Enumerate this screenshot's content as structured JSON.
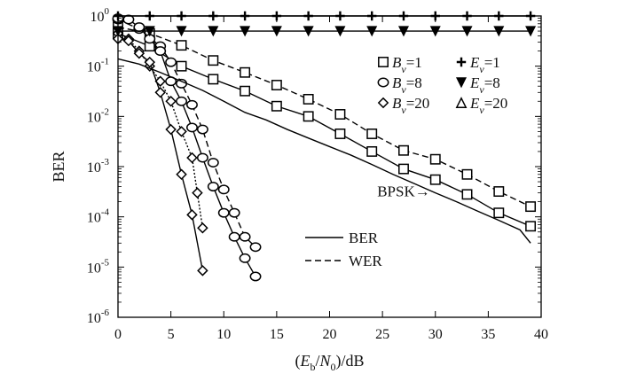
{
  "chart_data": {
    "type": "line",
    "xlabel": "(E_b/N_0)/dB",
    "ylabel": "BER",
    "xlim": [
      0,
      40
    ],
    "ylim": [
      1e-06,
      1
    ],
    "yscale": "log",
    "grid": false,
    "x_ticks": [
      "0",
      "5",
      "10",
      "15",
      "20",
      "25",
      "30",
      "35",
      "40"
    ],
    "y_ticks": [
      {
        "base": "10",
        "exp": "0"
      },
      {
        "base": "10",
        "exp": "-1"
      },
      {
        "base": "10",
        "exp": "-2"
      },
      {
        "base": "10",
        "exp": "-3"
      },
      {
        "base": "10",
        "exp": "-4"
      },
      {
        "base": "10",
        "exp": "-5"
      },
      {
        "base": "10",
        "exp": "-6"
      }
    ],
    "legend": {
      "placement": "top-right",
      "entries": [
        {
          "symbol": "square",
          "var": "B",
          "sub": "v",
          "val": "=1"
        },
        {
          "symbol": "plus",
          "var": "E",
          "sub": "v",
          "val": "=1"
        },
        {
          "symbol": "circle",
          "var": "B",
          "sub": "v",
          "val": "=8"
        },
        {
          "symbol": "triangle-down",
          "var": "E",
          "sub": "v",
          "val": "=8"
        },
        {
          "symbol": "diamond",
          "var": "B",
          "sub": "v",
          "val": "=20"
        },
        {
          "symbol": "triangle-up",
          "var": "E",
          "sub": "v",
          "val": "=20"
        }
      ]
    },
    "line_legend": [
      {
        "label": "BER",
        "style": "solid"
      },
      {
        "label": "WER",
        "style": "dashed"
      }
    ],
    "annotation": {
      "text": "BPSK→",
      "x": 30,
      "y": 0.0008
    },
    "series": [
      {
        "marker": "square",
        "line": "dashed",
        "x": [
          0,
          3,
          6,
          9,
          12,
          15,
          18,
          21,
          24,
          27,
          30,
          33,
          36,
          39
        ],
        "y": [
          0.6,
          0.45,
          0.26,
          0.13,
          0.075,
          0.042,
          0.022,
          0.011,
          0.0045,
          0.0021,
          0.0014,
          0.0007,
          0.00032,
          0.00016
        ]
      },
      {
        "marker": "square",
        "line": "solid",
        "x": [
          0,
          3,
          6,
          9,
          12,
          15,
          18,
          21,
          24,
          27,
          30,
          33,
          36,
          39
        ],
        "y": [
          0.45,
          0.25,
          0.1,
          0.055,
          0.032,
          0.016,
          0.01,
          0.0045,
          0.002,
          0.0009,
          0.00055,
          0.00028,
          0.00012,
          6.5e-05
        ]
      },
      {
        "marker": "circle",
        "line": "dashed",
        "x": [
          0,
          2,
          4,
          5,
          6,
          7,
          8,
          9,
          10,
          11,
          12,
          13
        ],
        "y": [
          0.85,
          0.55,
          0.25,
          0.12,
          0.045,
          0.017,
          0.0055,
          0.0012,
          0.00035,
          0.00012,
          4e-05,
          2.5e-05
        ]
      },
      {
        "marker": "circle",
        "line": "solid",
        "x": [
          0,
          1,
          2,
          3,
          4,
          5,
          6,
          7,
          8,
          9,
          10,
          11,
          12,
          13
        ],
        "y": [
          0.9,
          0.85,
          0.6,
          0.35,
          0.2,
          0.05,
          0.02,
          0.006,
          0.0015,
          0.0004,
          0.00012,
          4e-05,
          1.5e-05,
          6.5e-06
        ]
      },
      {
        "marker": "diamond",
        "line": "dotted",
        "x": [
          0,
          1,
          2,
          3,
          4,
          5,
          6,
          7,
          7.5,
          8
        ],
        "y": [
          0.45,
          0.35,
          0.2,
          0.1,
          0.05,
          0.02,
          0.005,
          0.0015,
          0.0003,
          6e-05
        ]
      },
      {
        "marker": "diamond",
        "line": "solid",
        "x": [
          0,
          1,
          2,
          3,
          4,
          5,
          6,
          7,
          8
        ],
        "y": [
          0.35,
          0.32,
          0.18,
          0.12,
          0.03,
          0.0055,
          0.0007,
          0.00011,
          8.5e-06
        ]
      },
      {
        "marker": "",
        "line": "solid",
        "x": [
          0,
          2,
          4,
          6,
          8,
          10,
          12,
          14,
          16,
          18,
          20,
          22,
          24,
          26,
          28,
          30,
          32,
          34,
          36,
          38,
          39
        ],
        "y": [
          0.14,
          0.11,
          0.075,
          0.05,
          0.033,
          0.02,
          0.012,
          0.0085,
          0.0055,
          0.0037,
          0.0025,
          0.0017,
          0.0011,
          0.0007,
          0.00046,
          0.0003,
          0.0002,
          0.00013,
          8.5e-05,
          5.5e-05,
          3e-05
        ]
      },
      {
        "marker": "plus",
        "line": "solid",
        "x": [
          0,
          3,
          6,
          9,
          12,
          15,
          18,
          21,
          24,
          27,
          30,
          33,
          36,
          39
        ],
        "y": [
          1,
          1,
          1,
          1,
          1,
          1,
          1,
          1,
          1,
          1,
          1,
          1,
          1,
          1
        ]
      },
      {
        "marker": "triangle-down",
        "line": "solid",
        "x": [
          0,
          3,
          6,
          9,
          12,
          15,
          18,
          21,
          24,
          27,
          30,
          33,
          36,
          39
        ],
        "y": [
          0.5,
          0.5,
          0.5,
          0.5,
          0.5,
          0.5,
          0.5,
          0.5,
          0.5,
          0.5,
          0.5,
          0.5,
          0.5,
          0.5
        ]
      }
    ]
  }
}
